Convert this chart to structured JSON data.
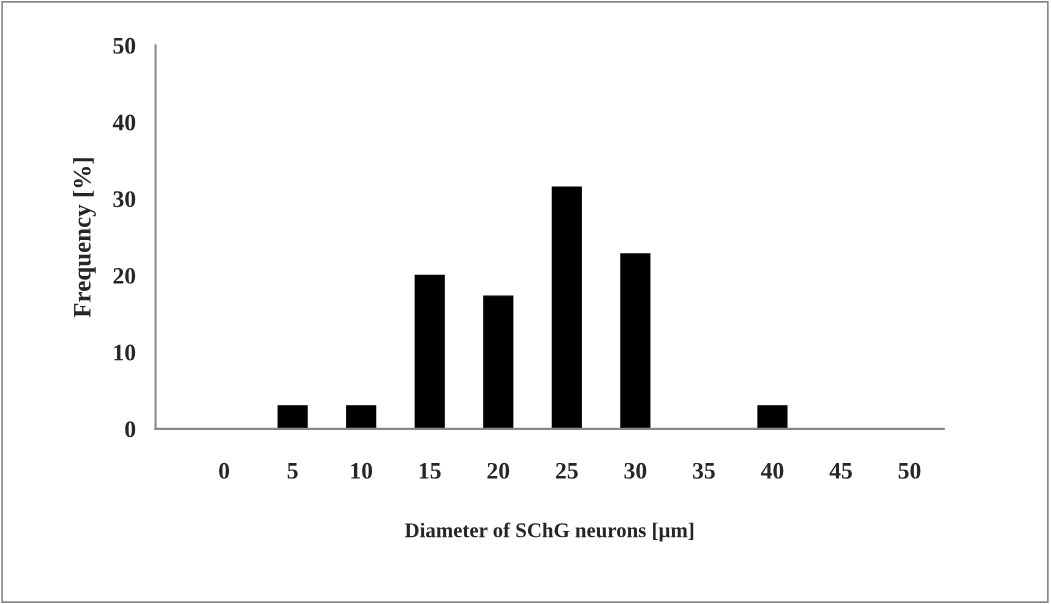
{
  "chart_data": {
    "type": "bar",
    "xlabel": "Diameter of SChG neurons [µm]",
    "ylabel": "Frequency [%]",
    "categories": [
      "0",
      "5",
      "10",
      "15",
      "20",
      "25",
      "30",
      "35",
      "40",
      "45",
      "50"
    ],
    "values": [
      0,
      3.0,
      3.0,
      20.0,
      17.3,
      31.5,
      22.8,
      0,
      3.0,
      0,
      0
    ],
    "color": "#000000",
    "ylim": [
      0,
      50
    ],
    "yticks": [
      0,
      10,
      20,
      30,
      40,
      50
    ],
    "grid": false,
    "legend": false
  }
}
